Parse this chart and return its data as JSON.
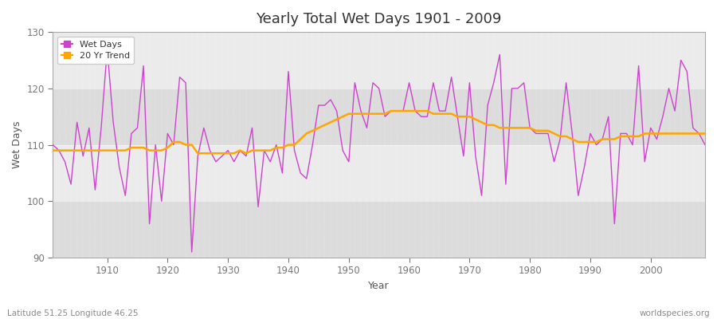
{
  "title": "Yearly Total Wet Days 1901 - 2009",
  "xlabel": "Year",
  "ylabel": "Wet Days",
  "subtitle_left": "Latitude 51.25 Longitude 46.25",
  "subtitle_right": "worldspecies.org",
  "ylim": [
    90,
    130
  ],
  "xlim": [
    1901,
    2009
  ],
  "yticks": [
    90,
    100,
    110,
    120,
    130
  ],
  "xticks": [
    1910,
    1920,
    1930,
    1940,
    1950,
    1960,
    1970,
    1980,
    1990,
    2000
  ],
  "wet_days_color": "#CC44CC",
  "trend_color": "#FFA500",
  "bg_color": "#FFFFFF",
  "plot_bg_color": "#F0F0F0",
  "band_color_light": "#EBEBEB",
  "band_color_dark": "#DCDCDC",
  "legend_labels": [
    "Wet Days",
    "20 Yr Trend"
  ],
  "years": [
    1901,
    1902,
    1903,
    1904,
    1905,
    1906,
    1907,
    1908,
    1909,
    1910,
    1911,
    1912,
    1913,
    1914,
    1915,
    1916,
    1917,
    1918,
    1919,
    1920,
    1921,
    1922,
    1923,
    1924,
    1925,
    1926,
    1927,
    1928,
    1929,
    1930,
    1931,
    1932,
    1933,
    1934,
    1935,
    1936,
    1937,
    1938,
    1939,
    1940,
    1941,
    1942,
    1943,
    1944,
    1945,
    1946,
    1947,
    1948,
    1949,
    1950,
    1951,
    1952,
    1953,
    1954,
    1955,
    1956,
    1957,
    1958,
    1959,
    1960,
    1961,
    1962,
    1963,
    1964,
    1965,
    1966,
    1967,
    1968,
    1969,
    1970,
    1971,
    1972,
    1973,
    1974,
    1975,
    1976,
    1977,
    1978,
    1979,
    1980,
    1981,
    1982,
    1983,
    1984,
    1985,
    1986,
    1987,
    1988,
    1989,
    1990,
    1991,
    1992,
    1993,
    1994,
    1995,
    1996,
    1997,
    1998,
    1999,
    2000,
    2001,
    2002,
    2003,
    2004,
    2005,
    2006,
    2007,
    2008,
    2009
  ],
  "wet_days": [
    110,
    109,
    107,
    103,
    114,
    108,
    113,
    102,
    113,
    127,
    114,
    106,
    101,
    112,
    113,
    124,
    96,
    110,
    100,
    112,
    110,
    122,
    121,
    91,
    108,
    113,
    109,
    107,
    108,
    109,
    107,
    109,
    108,
    113,
    99,
    109,
    107,
    110,
    105,
    123,
    109,
    105,
    104,
    110,
    117,
    117,
    118,
    116,
    109,
    107,
    121,
    116,
    113,
    121,
    120,
    115,
    116,
    116,
    116,
    121,
    116,
    115,
    115,
    121,
    116,
    116,
    122,
    115,
    108,
    121,
    108,
    101,
    117,
    121,
    126,
    103,
    120,
    120,
    121,
    113,
    112,
    112,
    112,
    107,
    111,
    121,
    112,
    101,
    106,
    112,
    110,
    111,
    115,
    96,
    112,
    112,
    110,
    124,
    107,
    113,
    111,
    115,
    120,
    116,
    125,
    123,
    113,
    112,
    110
  ],
  "trend": [
    109.0,
    109.0,
    109.0,
    109.0,
    109.0,
    109.0,
    109.0,
    109.0,
    109.0,
    109.0,
    109.0,
    109.0,
    109.0,
    109.5,
    109.5,
    109.5,
    109.0,
    109.0,
    109.0,
    109.5,
    110.5,
    110.5,
    110.0,
    110.0,
    108.5,
    108.5,
    108.5,
    108.5,
    108.5,
    108.5,
    108.5,
    109.0,
    108.5,
    109.0,
    109.0,
    109.0,
    109.0,
    109.5,
    109.5,
    110.0,
    110.0,
    111.0,
    112.0,
    112.5,
    113.0,
    113.5,
    114.0,
    114.5,
    115.0,
    115.5,
    115.5,
    115.5,
    115.5,
    115.5,
    115.5,
    115.5,
    116.0,
    116.0,
    116.0,
    116.0,
    116.0,
    116.0,
    116.0,
    115.5,
    115.5,
    115.5,
    115.5,
    115.0,
    115.0,
    115.0,
    114.5,
    114.0,
    113.5,
    113.5,
    113.0,
    113.0,
    113.0,
    113.0,
    113.0,
    113.0,
    112.5,
    112.5,
    112.5,
    112.0,
    111.5,
    111.5,
    111.0,
    110.5,
    110.5,
    110.5,
    110.5,
    111.0,
    111.0,
    111.0,
    111.5,
    111.5,
    111.5,
    111.5,
    112.0,
    112.0,
    112.0,
    112.0,
    112.0,
    112.0,
    112.0,
    112.0,
    112.0,
    112.0,
    112.0
  ]
}
